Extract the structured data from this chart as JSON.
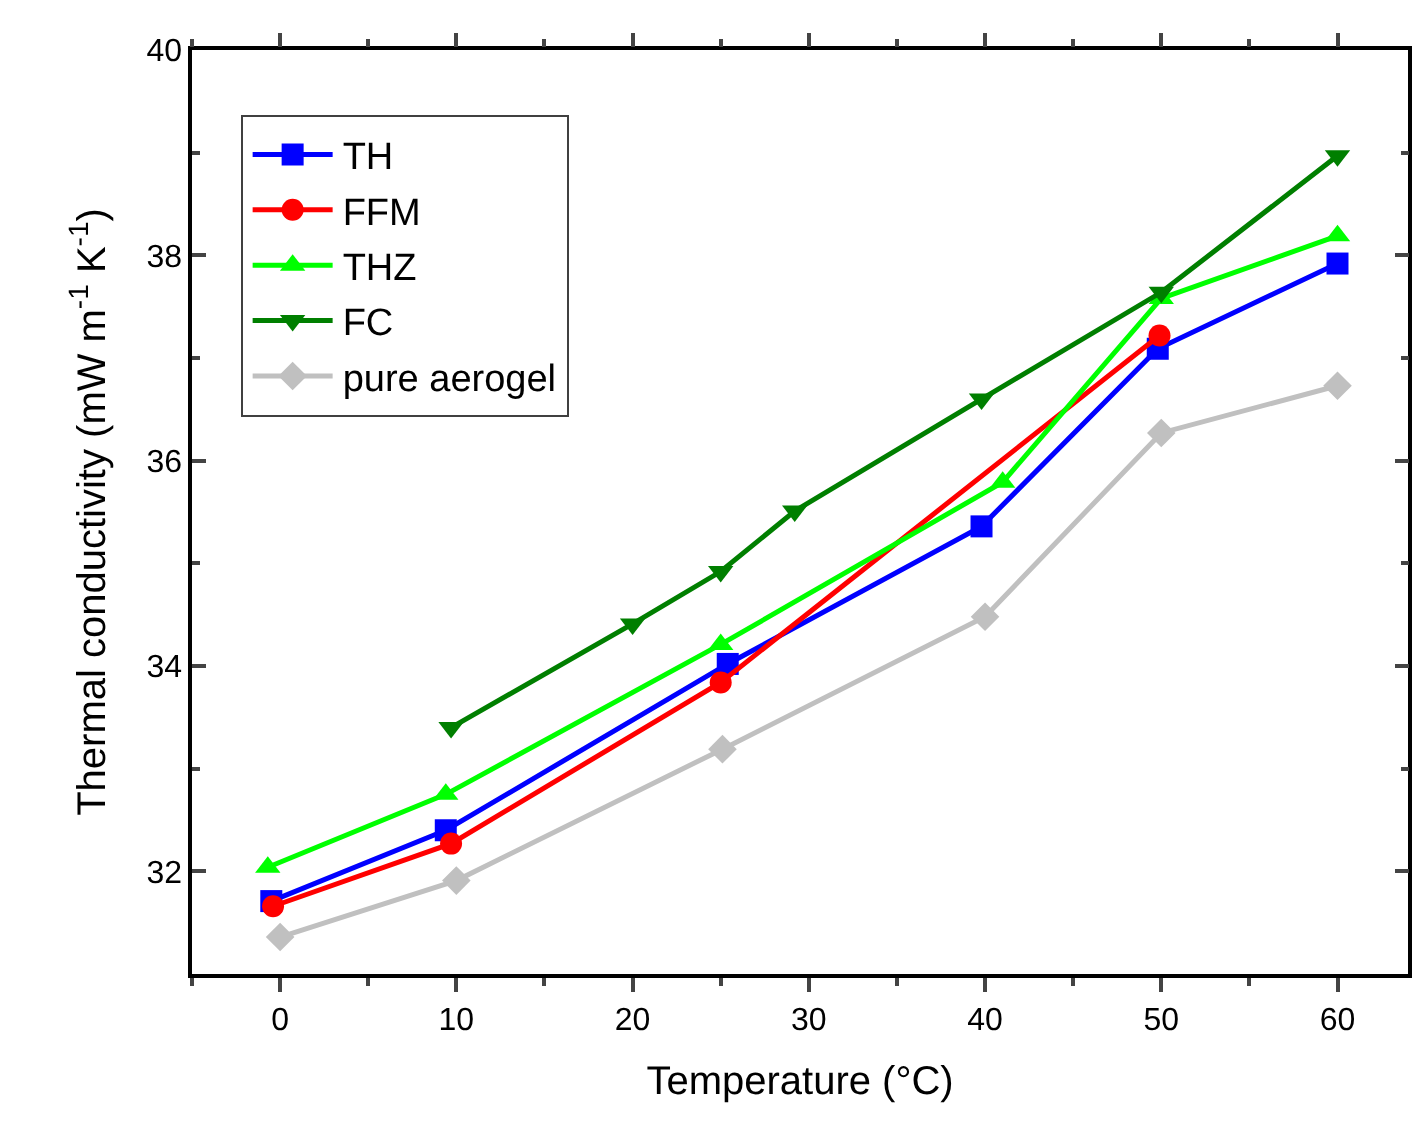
{
  "chart_data": {
    "type": "line",
    "xlabel": "Temperature (°C)",
    "ylabel": "Thermal conductivity (mW m$^{-1}$ K$^{-1}$)",
    "xlim": [
      -5,
      64
    ],
    "xticks": [
      0,
      10,
      20,
      30,
      40,
      50,
      60
    ],
    "ylim": [
      31,
      40
    ],
    "yticks": [
      32,
      34,
      36,
      38,
      40
    ],
    "legend": "top left",
    "line_style": "solid",
    "series": [
      {
        "name": "TH",
        "color": "#0000ff",
        "marker": "square",
        "x": [
          -0.5,
          9.4,
          25.4,
          39.8,
          49.8,
          60
        ],
        "values": [
          31.71,
          32.4,
          34.02,
          35.36,
          37.09,
          37.92
        ]
      },
      {
        "name": "FFM",
        "color": "#ff0000",
        "marker": "circle",
        "x": [
          -0.4,
          9.7,
          25,
          49.9
        ],
        "values": [
          31.66,
          32.27,
          33.84,
          37.22
        ]
      },
      {
        "name": "THZ",
        "color": "#00ff00",
        "marker": "triangle",
        "x": [
          -0.7,
          9.4,
          25,
          41,
          50,
          60
        ],
        "values": [
          32.04,
          32.75,
          34.21,
          35.79,
          37.58,
          38.19
        ]
      },
      {
        "name": "FC",
        "color": "#007f00",
        "marker": "triangle-down",
        "x": [
          9.7,
          20,
          25,
          29.2,
          39.8,
          50,
          60
        ],
        "values": [
          33.4,
          34.41,
          34.92,
          35.51,
          36.6,
          37.64,
          38.97
        ]
      },
      {
        "name": "pure aerogel",
        "color": "#c0c0c0",
        "marker": "diamond",
        "x": [
          0,
          10,
          25.1,
          40,
          50,
          60
        ],
        "values": [
          31.36,
          31.91,
          33.19,
          34.48,
          36.27,
          36.73
        ]
      }
    ]
  }
}
